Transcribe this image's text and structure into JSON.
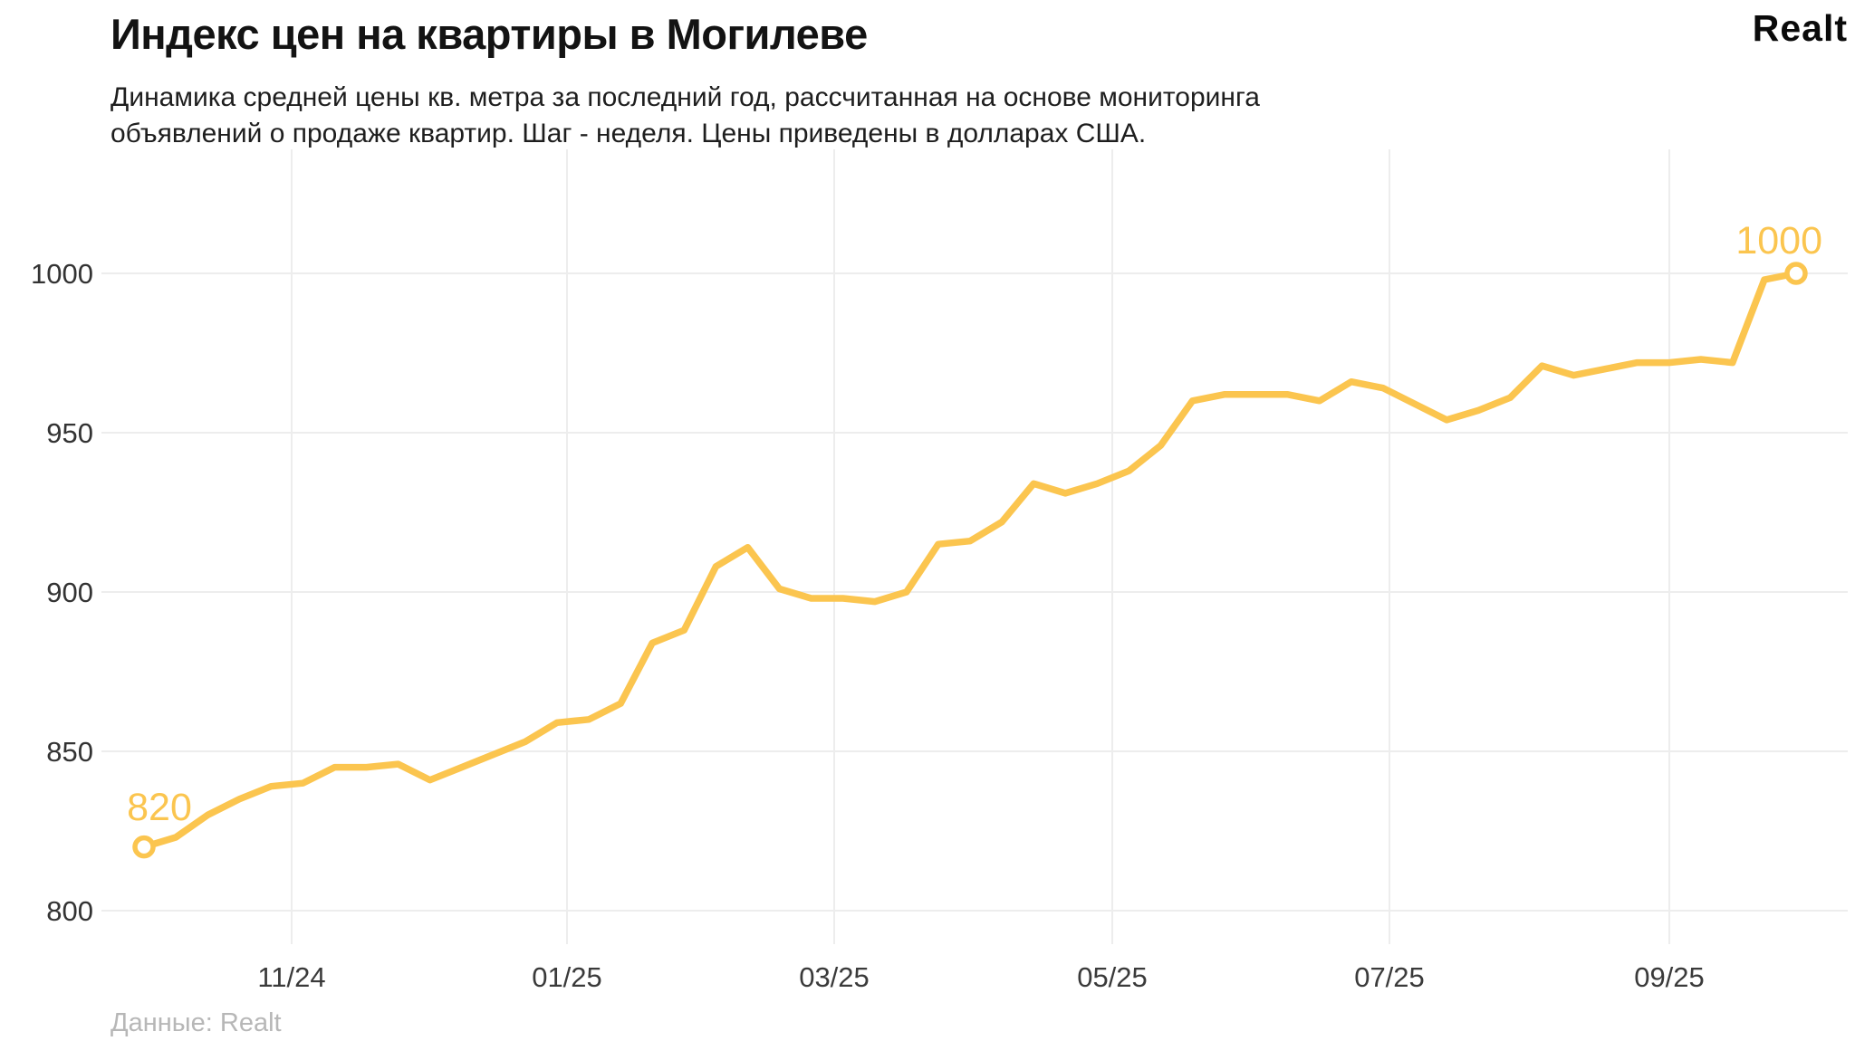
{
  "header": {
    "title": "Индекс цен на квартиры в Могилеве",
    "subtitle_line1": "Динамика средней цены кв. метра за последний год, рассчитанная на основе мониторинга",
    "subtitle_line2": "объявлений о продаже квартир. Шаг - неделя. Цены приведены в долларах США.",
    "logo": "Realt"
  },
  "footer": {
    "source": "Данные: Realt"
  },
  "chart_data": {
    "type": "line",
    "title": "Индекс цен на квартиры в Могилеве",
    "x_unit": "неделя",
    "x_tick_labels": [
      "11/24",
      "01/25",
      "03/25",
      "05/25",
      "07/25",
      "09/25"
    ],
    "y_tick_labels": [
      1000,
      950,
      900,
      850,
      800
    ],
    "ylim": [
      789,
      1040
    ],
    "grid": true,
    "legend": false,
    "line_color": "#FBC54F",
    "grid_color": "#ededed",
    "marker_fill": "#ffffff",
    "point_labels": {
      "first": "820",
      "last": "1000"
    },
    "series": [
      {
        "name": "Индекс цен",
        "values": [
          820,
          823,
          830,
          835,
          839,
          840,
          845,
          845,
          846,
          841,
          845,
          849,
          853,
          859,
          860,
          865,
          884,
          888,
          908,
          914,
          901,
          898,
          898,
          897,
          900,
          915,
          916,
          922,
          934,
          931,
          934,
          938,
          946,
          960,
          962,
          962,
          962,
          960,
          966,
          964,
          959,
          954,
          957,
          961,
          971,
          968,
          970,
          972,
          972,
          973,
          972,
          998,
          1000
        ]
      }
    ]
  }
}
